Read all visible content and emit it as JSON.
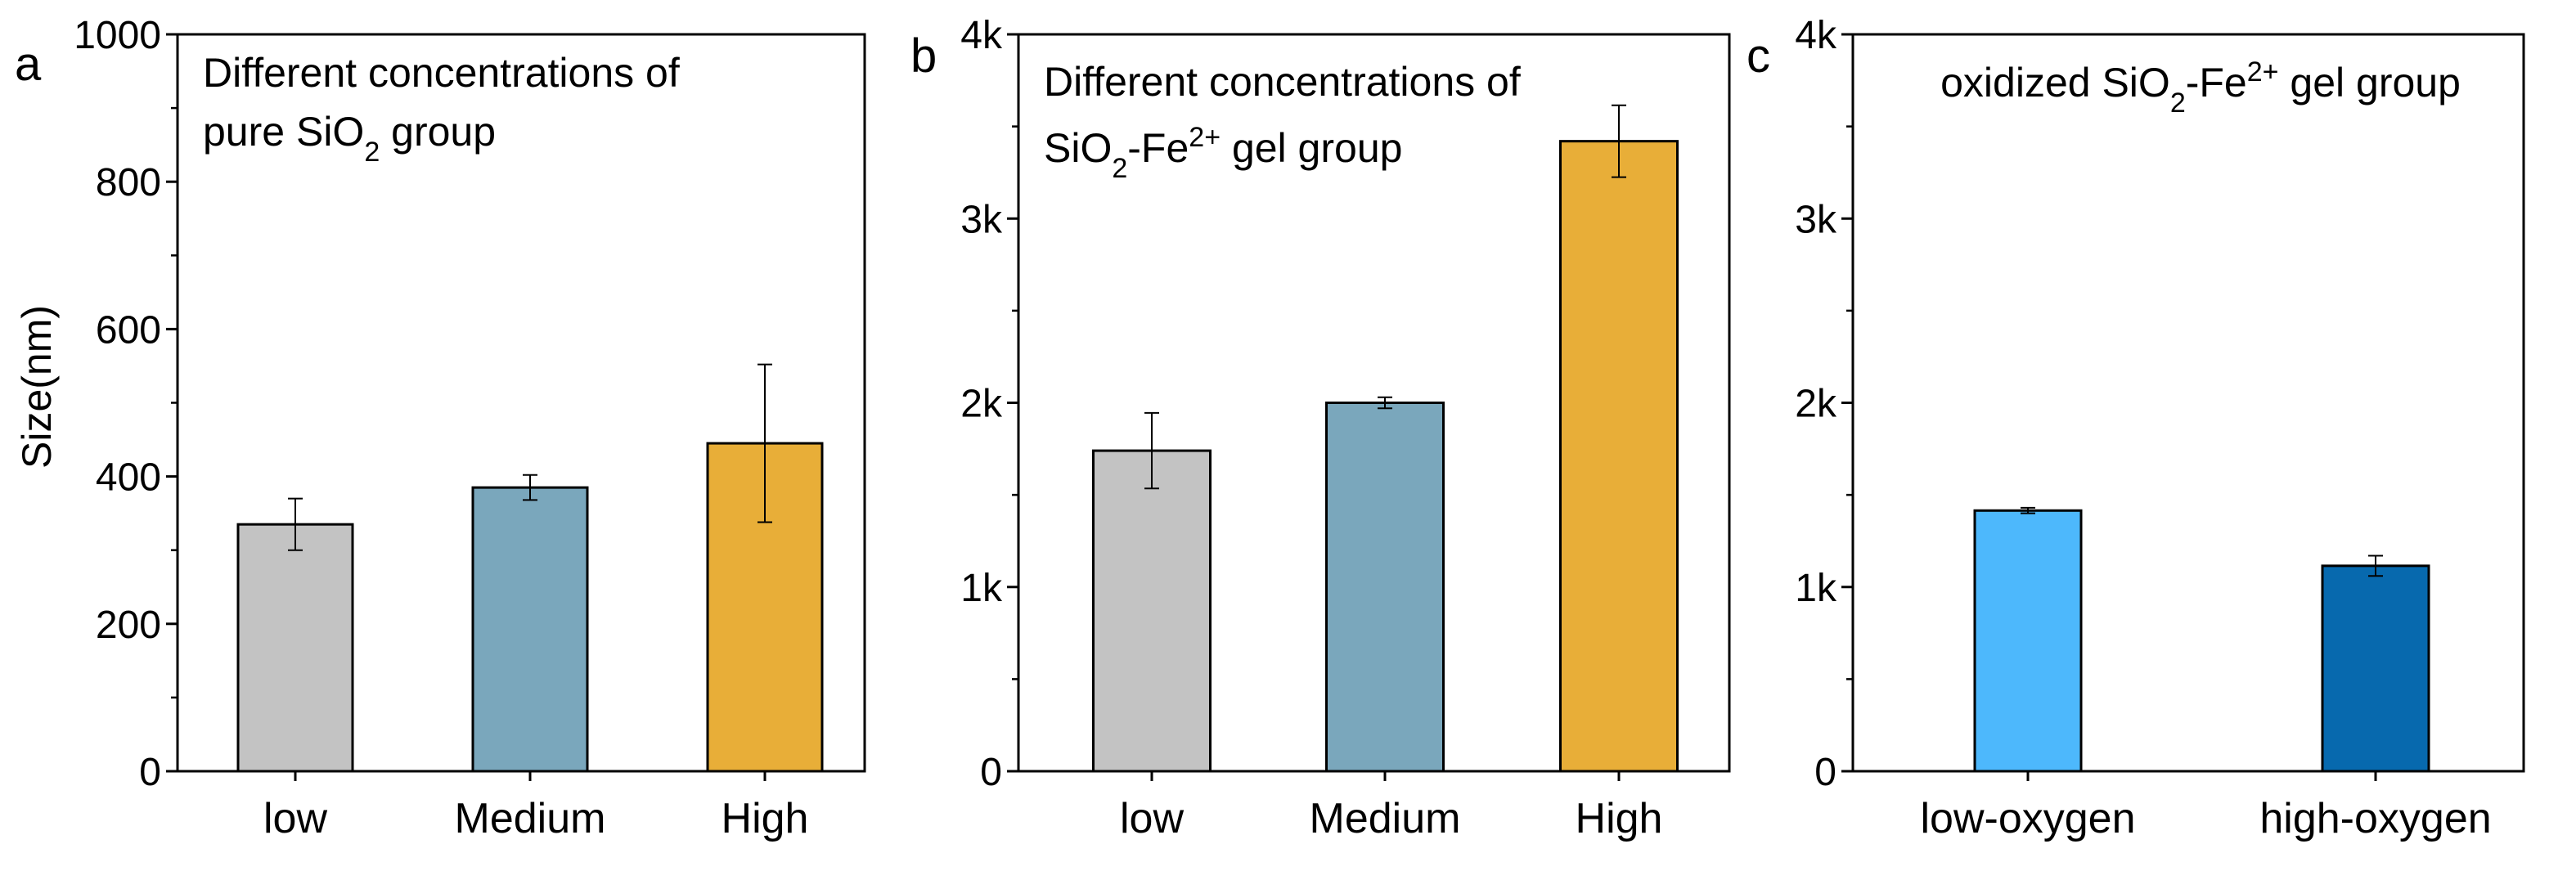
{
  "figure": {
    "ylabel": "Size(nm)"
  },
  "chart_data": [
    {
      "panel": "a",
      "type": "bar",
      "title_lines": [
        [
          {
            "t": "Different concentrations of"
          }
        ],
        [
          {
            "t": "pure SiO"
          },
          {
            "t": "2",
            "sub": true
          },
          {
            "t": " group"
          }
        ]
      ],
      "categories": [
        "low",
        "Medium",
        "High"
      ],
      "values": [
        335,
        385,
        445
      ],
      "errors": [
        35,
        17,
        107
      ],
      "colors": [
        "#C3C3C3",
        "#7AA7BC",
        "#E8AE38"
      ],
      "ylim": [
        0,
        1000
      ],
      "yticks": [
        0,
        200,
        400,
        600,
        800,
        1000
      ],
      "ytick_labels": [
        "0",
        "200",
        "400",
        "600",
        "800",
        "1000"
      ],
      "ylabel": "Size(nm)"
    },
    {
      "panel": "b",
      "type": "bar",
      "title_lines": [
        [
          {
            "t": "Different concentrations of"
          }
        ],
        [
          {
            "t": "SiO"
          },
          {
            "t": "2",
            "sub": true
          },
          {
            "t": "-Fe"
          },
          {
            "t": "2+",
            "sup": true
          },
          {
            "t": " gel group"
          }
        ]
      ],
      "categories": [
        "low",
        "Medium",
        "High"
      ],
      "values": [
        1740,
        2000,
        3420
      ],
      "errors": [
        205,
        30,
        195
      ],
      "colors": [
        "#C3C3C3",
        "#7AA7BC",
        "#E8AE38"
      ],
      "ylim": [
        0,
        4000
      ],
      "yticks": [
        0,
        1000,
        2000,
        3000,
        4000
      ],
      "ytick_labels": [
        "0",
        "1k",
        "2k",
        "3k",
        "4k"
      ],
      "ylabel": ""
    },
    {
      "panel": "c",
      "type": "bar",
      "title_lines": [
        [
          {
            "t": "oxidized SiO"
          },
          {
            "t": "2",
            "sub": true
          },
          {
            "t": "-Fe"
          },
          {
            "t": "2+",
            "sup": true
          },
          {
            "t": " gel group"
          }
        ]
      ],
      "categories": [
        "low-oxygen",
        "high-oxygen"
      ],
      "values": [
        1415,
        1115
      ],
      "errors": [
        15,
        55
      ],
      "colors": [
        "#4DB8FC",
        "#0769AE"
      ],
      "ylim": [
        0,
        4000
      ],
      "yticks": [
        0,
        1000,
        2000,
        3000,
        4000
      ],
      "ytick_labels": [
        "0",
        "1k",
        "2k",
        "3k",
        "4k"
      ],
      "ylabel": ""
    }
  ]
}
